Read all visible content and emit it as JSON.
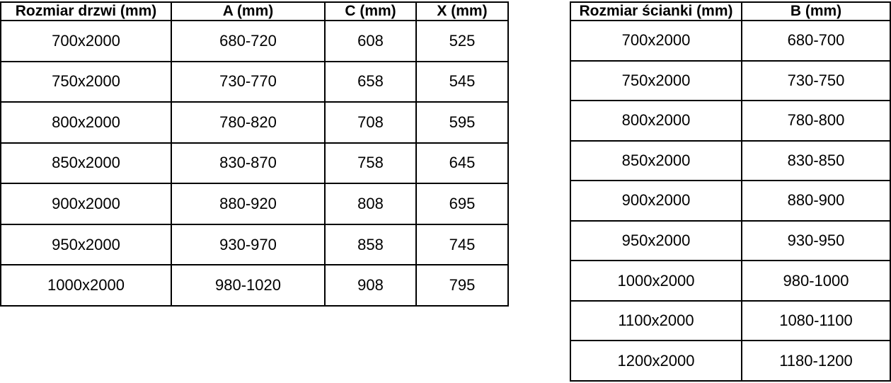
{
  "colors": {
    "border": "#000000",
    "text": "#000000",
    "background": "#ffffff"
  },
  "tables": {
    "doors": {
      "headers": [
        "Rozmiar drzwi (mm)",
        "A (mm)",
        "C (mm)",
        "X (mm)"
      ],
      "rows": [
        [
          "700x2000",
          "680-720",
          "608",
          "525"
        ],
        [
          "750x2000",
          "730-770",
          "658",
          "545"
        ],
        [
          "800x2000",
          "780-820",
          "708",
          "595"
        ],
        [
          "850x2000",
          "830-870",
          "758",
          "645"
        ],
        [
          "900x2000",
          "880-920",
          "808",
          "695"
        ],
        [
          "950x2000",
          "930-970",
          "858",
          "745"
        ],
        [
          "1000x2000",
          "980-1020",
          "908",
          "795"
        ]
      ]
    },
    "wall": {
      "headers": [
        "Rozmiar ścianki (mm)",
        "B (mm)"
      ],
      "rows": [
        [
          "700x2000",
          "680-700"
        ],
        [
          "750x2000",
          "730-750"
        ],
        [
          "800x2000",
          "780-800"
        ],
        [
          "850x2000",
          "830-850"
        ],
        [
          "900x2000",
          "880-900"
        ],
        [
          "950x2000",
          "930-950"
        ],
        [
          "1000x2000",
          "980-1000"
        ],
        [
          "1100x2000",
          "1080-1100"
        ],
        [
          "1200x2000",
          "1180-1200"
        ]
      ]
    }
  }
}
